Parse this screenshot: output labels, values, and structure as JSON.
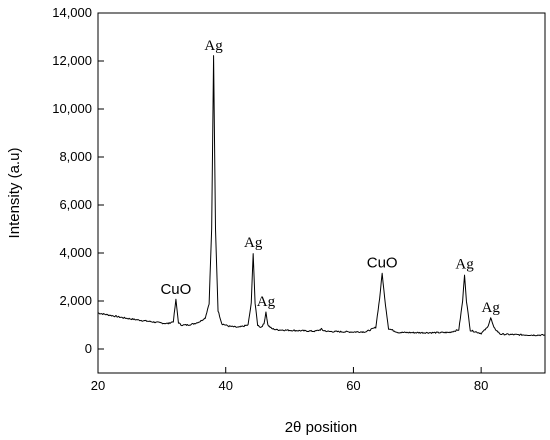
{
  "chart_data": {
    "type": "line",
    "title": "",
    "xlabel": "2θ position",
    "ylabel": "Intensity (a.u)",
    "xlim": [
      20,
      90
    ],
    "ylim": [
      -1000,
      14000
    ],
    "x_ticks": [
      20,
      40,
      60,
      80
    ],
    "x_tick_labels": [
      "20",
      "40",
      "60",
      "80"
    ],
    "y_ticks": [
      0,
      2000,
      4000,
      6000,
      8000,
      10000,
      12000,
      14000
    ],
    "y_tick_labels": [
      "0",
      "2,000",
      "4,000",
      "6,000",
      "8,000",
      "10,000",
      "12,000",
      "14,000"
    ],
    "grid": false,
    "legend": "none",
    "series": [
      {
        "color": "#000000",
        "x": [
          20,
          22,
          24,
          26,
          28,
          30,
          31,
          31.8,
          32.2,
          32.6,
          33,
          34,
          35,
          36,
          36.8,
          37.4,
          37.8,
          38.1,
          38.4,
          38.8,
          39.4,
          40.5,
          42,
          43.5,
          44.0,
          44.3,
          44.6,
          45.0,
          45.5,
          46.0,
          46.3,
          46.6,
          47.2,
          48,
          50,
          52,
          54,
          54.8,
          55,
          55.2,
          56,
          58,
          60,
          62,
          63.5,
          64.1,
          64.5,
          64.9,
          65.5,
          67,
          70,
          73,
          75,
          76.5,
          77.1,
          77.4,
          77.7,
          78.3,
          80,
          81.0,
          81.5,
          82.0,
          83,
          85,
          88,
          90
        ],
        "y": [
          1500,
          1400,
          1300,
          1220,
          1150,
          1080,
          1060,
          1150,
          2050,
          1100,
          1000,
          1000,
          1050,
          1150,
          1300,
          1900,
          5000,
          12200,
          5000,
          1600,
          1050,
          950,
          900,
          1000,
          1900,
          4000,
          1900,
          1000,
          900,
          1050,
          1550,
          1000,
          850,
          800,
          780,
          760,
          740,
          800,
          830,
          780,
          730,
          720,
          710,
          720,
          900,
          2100,
          3150,
          2100,
          850,
          690,
          680,
          680,
          690,
          800,
          2000,
          3100,
          2000,
          780,
          650,
          900,
          1300,
          880,
          620,
          600,
          580,
          580
        ]
      }
    ],
    "annotations": [
      {
        "text": "CuO",
        "x": 32.2,
        "y": 2050,
        "style": "cuo"
      },
      {
        "text": "Ag",
        "x": 38.1,
        "y": 12200,
        "style": "ag"
      },
      {
        "text": "Ag",
        "x": 44.3,
        "y": 4000,
        "style": "ag"
      },
      {
        "text": "Ag",
        "x": 46.3,
        "y": 1550,
        "style": "ag"
      },
      {
        "text": "CuO",
        "x": 64.5,
        "y": 3150,
        "style": "cuo"
      },
      {
        "text": "Ag",
        "x": 77.4,
        "y": 3100,
        "style": "ag"
      },
      {
        "text": "Ag",
        "x": 81.5,
        "y": 1300,
        "style": "ag"
      }
    ]
  }
}
